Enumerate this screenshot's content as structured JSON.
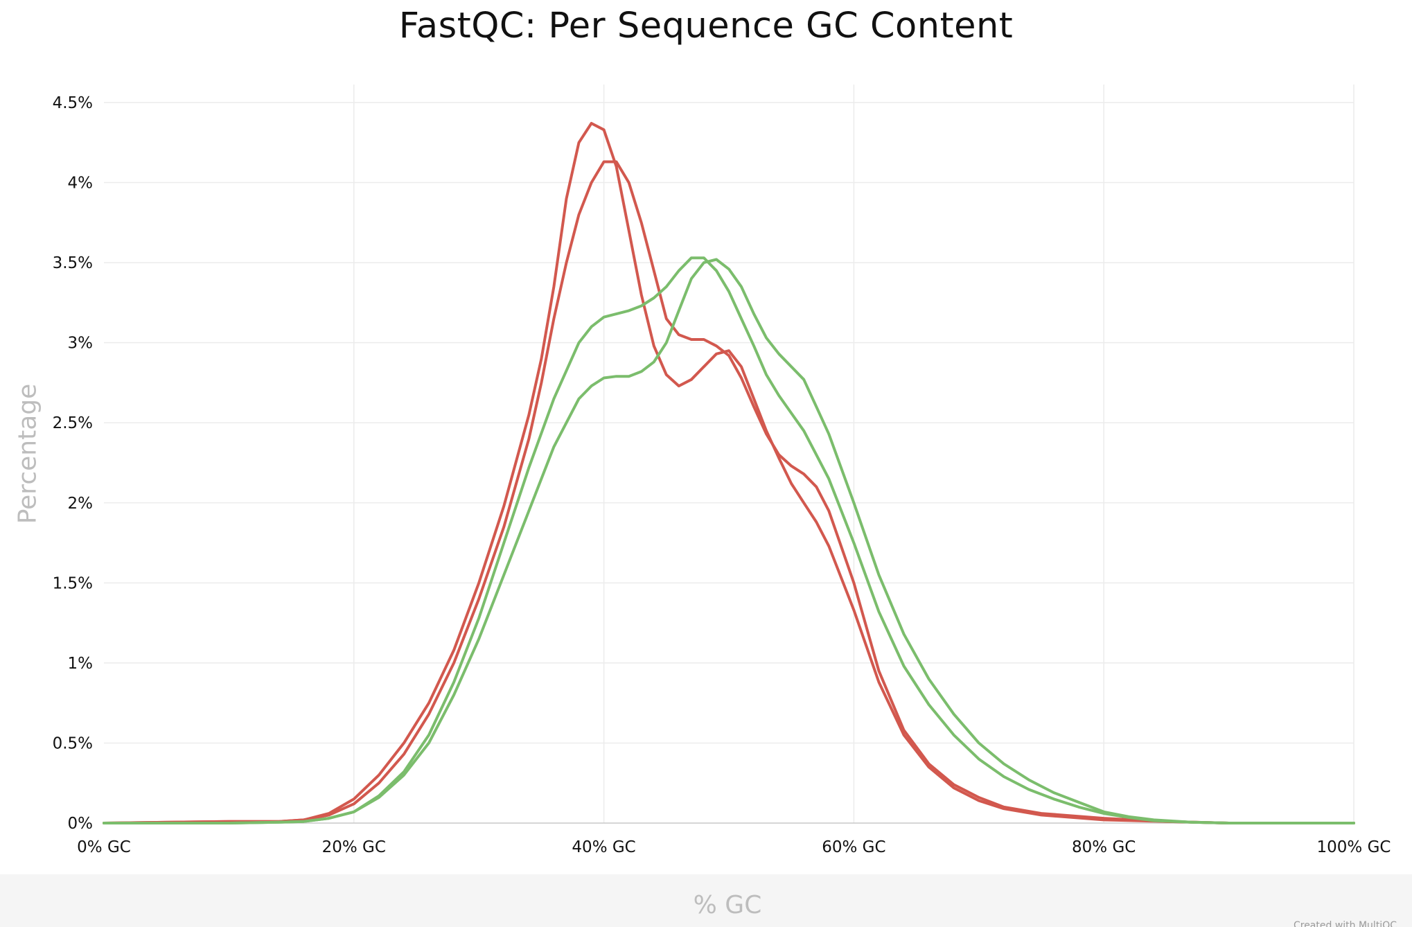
{
  "chart_data": {
    "type": "line",
    "title": "FastQC: Per Sequence GC Content",
    "xlabel": "% GC",
    "ylabel": "Percentage",
    "xlim": [
      0,
      100
    ],
    "ylim": [
      0,
      4.5
    ],
    "x_ticks": [
      0,
      20,
      40,
      60,
      80,
      100
    ],
    "x_tick_labels": [
      "0% GC",
      "20% GC",
      "40% GC",
      "60% GC",
      "80% GC",
      "100% GC"
    ],
    "y_ticks": [
      0,
      0.5,
      1,
      1.5,
      2,
      2.5,
      3,
      3.5,
      4,
      4.5
    ],
    "y_tick_labels": [
      "0%",
      "0.5%",
      "1%",
      "1.5%",
      "2%",
      "2.5%",
      "3%",
      "3.5%",
      "4%",
      "4.5%"
    ],
    "grid": true,
    "legend": "none",
    "credit": "Created with MultiQC",
    "series": [
      {
        "color": "#d2584e",
        "points": [
          [
            0,
            0
          ],
          [
            10,
            0.01
          ],
          [
            14,
            0.01
          ],
          [
            16,
            0.02
          ],
          [
            18,
            0.05
          ],
          [
            20,
            0.12
          ],
          [
            22,
            0.25
          ],
          [
            24,
            0.43
          ],
          [
            26,
            0.68
          ],
          [
            28,
            1.0
          ],
          [
            30,
            1.4
          ],
          [
            32,
            1.85
          ],
          [
            34,
            2.4
          ],
          [
            35,
            2.75
          ],
          [
            36,
            3.15
          ],
          [
            37,
            3.5
          ],
          [
            38,
            3.8
          ],
          [
            39,
            4.0
          ],
          [
            40,
            4.13
          ],
          [
            41,
            4.13
          ],
          [
            42,
            4.0
          ],
          [
            43,
            3.75
          ],
          [
            44,
            3.45
          ],
          [
            45,
            3.15
          ],
          [
            46,
            3.05
          ],
          [
            47,
            3.02
          ],
          [
            48,
            3.02
          ],
          [
            49,
            2.98
          ],
          [
            50,
            2.92
          ],
          [
            51,
            2.78
          ],
          [
            52,
            2.6
          ],
          [
            53,
            2.43
          ],
          [
            54,
            2.3
          ],
          [
            55,
            2.23
          ],
          [
            56,
            2.18
          ],
          [
            57,
            2.1
          ],
          [
            58,
            1.95
          ],
          [
            60,
            1.5
          ],
          [
            62,
            0.95
          ],
          [
            64,
            0.58
          ],
          [
            66,
            0.37
          ],
          [
            68,
            0.24
          ],
          [
            70,
            0.16
          ],
          [
            72,
            0.1
          ],
          [
            75,
            0.06
          ],
          [
            80,
            0.03
          ],
          [
            85,
            0.01
          ],
          [
            90,
            0
          ],
          [
            100,
            0
          ]
        ]
      },
      {
        "color": "#d2584e",
        "points": [
          [
            0,
            0
          ],
          [
            10,
            0.01
          ],
          [
            14,
            0.01
          ],
          [
            16,
            0.02
          ],
          [
            18,
            0.06
          ],
          [
            20,
            0.15
          ],
          [
            22,
            0.3
          ],
          [
            24,
            0.5
          ],
          [
            26,
            0.75
          ],
          [
            28,
            1.08
          ],
          [
            30,
            1.5
          ],
          [
            32,
            1.98
          ],
          [
            34,
            2.55
          ],
          [
            35,
            2.9
          ],
          [
            36,
            3.35
          ],
          [
            37,
            3.9
          ],
          [
            38,
            4.25
          ],
          [
            39,
            4.37
          ],
          [
            40,
            4.33
          ],
          [
            41,
            4.1
          ],
          [
            42,
            3.7
          ],
          [
            43,
            3.3
          ],
          [
            44,
            2.98
          ],
          [
            45,
            2.8
          ],
          [
            46,
            2.73
          ],
          [
            47,
            2.77
          ],
          [
            48,
            2.85
          ],
          [
            49,
            2.93
          ],
          [
            50,
            2.95
          ],
          [
            51,
            2.85
          ],
          [
            52,
            2.65
          ],
          [
            53,
            2.45
          ],
          [
            54,
            2.28
          ],
          [
            55,
            2.12
          ],
          [
            56,
            2.0
          ],
          [
            57,
            1.88
          ],
          [
            58,
            1.73
          ],
          [
            60,
            1.33
          ],
          [
            62,
            0.88
          ],
          [
            64,
            0.55
          ],
          [
            66,
            0.35
          ],
          [
            68,
            0.22
          ],
          [
            70,
            0.14
          ],
          [
            72,
            0.09
          ],
          [
            75,
            0.05
          ],
          [
            80,
            0.02
          ],
          [
            85,
            0.01
          ],
          [
            90,
            0
          ],
          [
            100,
            0
          ]
        ]
      },
      {
        "color": "#7bbd6c",
        "points": [
          [
            0,
            0
          ],
          [
            10,
            0
          ],
          [
            14,
            0.005
          ],
          [
            16,
            0.01
          ],
          [
            18,
            0.03
          ],
          [
            20,
            0.07
          ],
          [
            22,
            0.16
          ],
          [
            24,
            0.3
          ],
          [
            26,
            0.5
          ],
          [
            28,
            0.8
          ],
          [
            30,
            1.15
          ],
          [
            32,
            1.55
          ],
          [
            34,
            1.95
          ],
          [
            36,
            2.35
          ],
          [
            38,
            2.65
          ],
          [
            39,
            2.73
          ],
          [
            40,
            2.78
          ],
          [
            41,
            2.79
          ],
          [
            42,
            2.79
          ],
          [
            43,
            2.82
          ],
          [
            44,
            2.88
          ],
          [
            45,
            3.0
          ],
          [
            46,
            3.2
          ],
          [
            47,
            3.4
          ],
          [
            48,
            3.5
          ],
          [
            49,
            3.52
          ],
          [
            50,
            3.46
          ],
          [
            51,
            3.35
          ],
          [
            52,
            3.18
          ],
          [
            53,
            3.03
          ],
          [
            54,
            2.93
          ],
          [
            55,
            2.85
          ],
          [
            56,
            2.77
          ],
          [
            57,
            2.6
          ],
          [
            58,
            2.43
          ],
          [
            60,
            2.0
          ],
          [
            62,
            1.55
          ],
          [
            64,
            1.18
          ],
          [
            66,
            0.9
          ],
          [
            68,
            0.68
          ],
          [
            70,
            0.5
          ],
          [
            72,
            0.37
          ],
          [
            74,
            0.27
          ],
          [
            76,
            0.19
          ],
          [
            78,
            0.13
          ],
          [
            80,
            0.07
          ],
          [
            82,
            0.04
          ],
          [
            84,
            0.02
          ],
          [
            87,
            0.005
          ],
          [
            90,
            0
          ],
          [
            100,
            0
          ]
        ]
      },
      {
        "color": "#7bbd6c",
        "points": [
          [
            0,
            0
          ],
          [
            10,
            0
          ],
          [
            14,
            0.005
          ],
          [
            16,
            0.01
          ],
          [
            18,
            0.03
          ],
          [
            20,
            0.07
          ],
          [
            22,
            0.17
          ],
          [
            24,
            0.32
          ],
          [
            26,
            0.55
          ],
          [
            28,
            0.88
          ],
          [
            30,
            1.28
          ],
          [
            32,
            1.75
          ],
          [
            34,
            2.22
          ],
          [
            36,
            2.65
          ],
          [
            38,
            3.0
          ],
          [
            39,
            3.1
          ],
          [
            40,
            3.16
          ],
          [
            41,
            3.18
          ],
          [
            42,
            3.2
          ],
          [
            43,
            3.23
          ],
          [
            44,
            3.28
          ],
          [
            45,
            3.35
          ],
          [
            46,
            3.45
          ],
          [
            47,
            3.53
          ],
          [
            48,
            3.53
          ],
          [
            49,
            3.45
          ],
          [
            50,
            3.32
          ],
          [
            51,
            3.15
          ],
          [
            52,
            2.98
          ],
          [
            53,
            2.8
          ],
          [
            54,
            2.67
          ],
          [
            55,
            2.56
          ],
          [
            56,
            2.45
          ],
          [
            57,
            2.3
          ],
          [
            58,
            2.15
          ],
          [
            60,
            1.75
          ],
          [
            62,
            1.32
          ],
          [
            64,
            0.98
          ],
          [
            66,
            0.74
          ],
          [
            68,
            0.55
          ],
          [
            70,
            0.4
          ],
          [
            72,
            0.29
          ],
          [
            74,
            0.21
          ],
          [
            76,
            0.15
          ],
          [
            78,
            0.1
          ],
          [
            80,
            0.06
          ],
          [
            82,
            0.035
          ],
          [
            84,
            0.015
          ],
          [
            87,
            0.005
          ],
          [
            90,
            0
          ],
          [
            100,
            0
          ]
        ]
      }
    ]
  }
}
